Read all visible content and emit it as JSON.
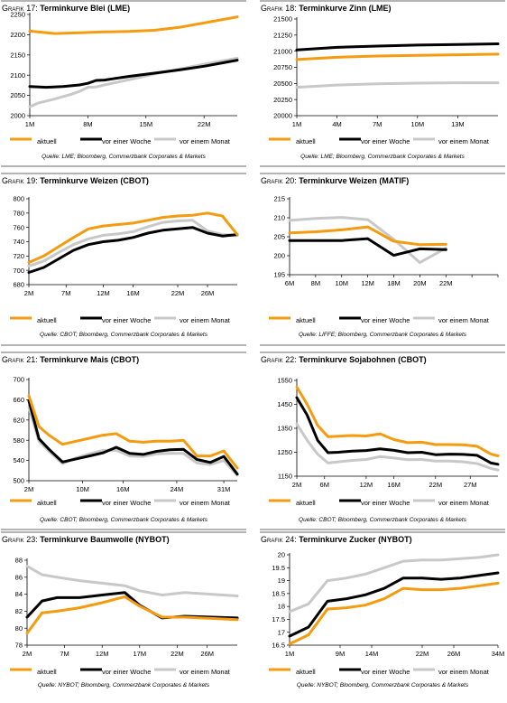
{
  "colors": {
    "aktuell": "#f59b0f",
    "woche": "#000000",
    "monat": "#c8c8c8",
    "rule": "#b4b4b4"
  },
  "grafik_prefix": "Grafik",
  "chart_data": [
    {
      "id": "g17",
      "type": "line",
      "number": "17",
      "title": "Terminkurve Blei (LME)",
      "source": "Quelle: LME; Bloomberg, Commerzbank Corporates & Markets",
      "ylim": [
        2000,
        2250
      ],
      "yticks": [
        2000,
        2050,
        2100,
        2150,
        2200,
        2250
      ],
      "xlim": [
        0,
        25
      ],
      "xticks": [
        {
          "x": 0,
          "label": "1M"
        },
        {
          "x": 7,
          "label": "8M"
        },
        {
          "x": 14,
          "label": "15M"
        },
        {
          "x": 21,
          "label": "22M"
        }
      ],
      "x_tick_marks": [
        0,
        7,
        14,
        21
      ],
      "series": [
        {
          "name": "aktuell",
          "x": [
            0,
            3,
            6,
            9,
            12,
            15,
            18,
            21,
            25
          ],
          "values": [
            2209,
            2203,
            2205,
            2207,
            2208,
            2211,
            2218,
            2229,
            2244
          ]
        },
        {
          "name": "vor einer Woche",
          "x": [
            0,
            2,
            4,
            6,
            7,
            8,
            9,
            10,
            12,
            15,
            18,
            21,
            25
          ],
          "values": [
            2072,
            2070,
            2072,
            2076,
            2080,
            2087,
            2088,
            2091,
            2097,
            2105,
            2113,
            2122,
            2137
          ]
        },
        {
          "name": "vor einem Monat",
          "x": [
            0,
            1,
            3,
            5,
            6,
            7,
            8,
            9,
            12,
            15,
            18,
            21,
            25
          ],
          "values": [
            2022,
            2031,
            2041,
            2053,
            2060,
            2070,
            2071,
            2076,
            2089,
            2103,
            2115,
            2127,
            2142
          ]
        }
      ]
    },
    {
      "id": "g18",
      "type": "line",
      "number": "18",
      "title": "Terminkurve Zinn (LME)",
      "source": "Quelle: LME; Bloomberg, Commerzbank Corporates & Markets",
      "ylim": [
        20000,
        21500
      ],
      "yticks": [
        20000,
        20250,
        20500,
        20750,
        21000,
        21250,
        21500
      ],
      "xlim": [
        0,
        15
      ],
      "xticks": [
        {
          "x": 0,
          "label": "1M"
        },
        {
          "x": 3,
          "label": "4M"
        },
        {
          "x": 6,
          "label": "7M"
        },
        {
          "x": 9,
          "label": "10M"
        },
        {
          "x": 12,
          "label": "13M"
        }
      ],
      "x_tick_marks": [
        0,
        3,
        6,
        9,
        12
      ],
      "series": [
        {
          "name": "aktuell",
          "x": [
            0,
            3,
            6,
            9,
            12,
            15
          ],
          "values": [
            20870,
            20905,
            20925,
            20935,
            20945,
            20955
          ]
        },
        {
          "name": "vor einer Woche",
          "x": [
            0,
            3,
            6,
            9,
            12,
            15
          ],
          "values": [
            21020,
            21060,
            21080,
            21095,
            21105,
            21115
          ]
        },
        {
          "name": "vor einem Monat",
          "x": [
            0,
            3,
            6,
            9,
            12,
            15
          ],
          "values": [
            20440,
            20475,
            20495,
            20505,
            20510,
            20510
          ]
        }
      ]
    },
    {
      "id": "g19",
      "type": "line",
      "number": "19",
      "title": "Terminkurve Weizen (CBOT)",
      "source": "Quelle: CBOT; Bloomberg, Commerzbank Corporates & Markets",
      "ylim": [
        680,
        800
      ],
      "yticks": [
        680,
        700,
        720,
        740,
        760,
        780,
        800
      ],
      "xlim": [
        0,
        28
      ],
      "xticks": [
        {
          "x": 0,
          "label": "2M"
        },
        {
          "x": 5,
          "label": "7M"
        },
        {
          "x": 10,
          "label": "12M"
        },
        {
          "x": 14,
          "label": "16M"
        },
        {
          "x": 20,
          "label": "22M"
        },
        {
          "x": 24,
          "label": "26M"
        }
      ],
      "x_tick_marks": [
        0,
        5,
        10,
        14,
        20,
        24
      ],
      "series": [
        {
          "name": "aktuell",
          "x": [
            0,
            2,
            4,
            6,
            8,
            10,
            12,
            14,
            16,
            18,
            20,
            22,
            24,
            26,
            28
          ],
          "values": [
            711,
            720,
            733,
            746,
            758,
            762,
            764,
            766,
            770,
            774,
            776,
            777,
            780,
            776,
            750
          ]
        },
        {
          "name": "vor einer Woche",
          "x": [
            0,
            2,
            4,
            6,
            8,
            10,
            12,
            14,
            16,
            18,
            20,
            22,
            24,
            26,
            28
          ],
          "values": [
            697,
            704,
            716,
            728,
            736,
            740,
            742,
            746,
            752,
            756,
            758,
            760,
            752,
            748,
            750
          ]
        },
        {
          "name": "vor einem Monat",
          "x": [
            0,
            2,
            4,
            6,
            8,
            10,
            12,
            14,
            16,
            18,
            20,
            22,
            24,
            26,
            28
          ],
          "values": [
            706,
            713,
            725,
            736,
            744,
            749,
            751,
            754,
            761,
            767,
            769,
            770,
            755,
            750,
            749
          ]
        }
      ]
    },
    {
      "id": "g20",
      "type": "line",
      "number": "20",
      "title": "Terminkurve Weizen (MATIF)",
      "source": "Quelle: LIFFE; Bloomberg, Commerzbank Corporates & Markets",
      "ylim": [
        195,
        215
      ],
      "yticks": [
        195,
        200,
        205,
        210,
        215
      ],
      "xlim": [
        0,
        24
      ],
      "xticks": [
        {
          "x": 0,
          "label": "6M"
        },
        {
          "x": 3,
          "label": "8M"
        },
        {
          "x": 6,
          "label": "10M"
        },
        {
          "x": 9,
          "label": "12M"
        },
        {
          "x": 12,
          "label": "18M"
        },
        {
          "x": 15,
          "label": "20M"
        },
        {
          "x": 18,
          "label": "22M"
        }
      ],
      "x_tick_marks": [
        0,
        3,
        6,
        9,
        12,
        15,
        18,
        21,
        24
      ],
      "series": [
        {
          "name": "aktuell",
          "x": [
            0,
            3,
            6,
            9,
            12,
            15,
            18
          ],
          "values": [
            206,
            206.3,
            206.8,
            207.6,
            203.8,
            202.9,
            203
          ]
        },
        {
          "name": "vor einer Woche",
          "x": [
            0,
            3,
            6,
            9,
            12,
            15,
            18
          ],
          "values": [
            204,
            204,
            204,
            204.5,
            200.1,
            201.8,
            201.6
          ]
        },
        {
          "name": "vor einem Monat",
          "x": [
            0,
            3,
            6,
            9,
            12,
            15,
            18
          ],
          "values": [
            209.3,
            209.8,
            210.1,
            209.5,
            204.3,
            198.2,
            202
          ]
        }
      ]
    },
    {
      "id": "g21",
      "type": "line",
      "number": "21",
      "title": "Terminkurve Mais (CBOT)",
      "source": "Quelle: CBOT; Bloomberg, Commerzbank Corporates & Markets",
      "ylim": [
        500,
        700
      ],
      "yticks": [
        500,
        540,
        580,
        620,
        660,
        700
      ],
      "xlim": [
        0,
        31
      ],
      "xticks": [
        {
          "x": 0,
          "label": "2M"
        },
        {
          "x": 8,
          "label": "10M"
        },
        {
          "x": 14,
          "label": "16M"
        },
        {
          "x": 22,
          "label": "24M"
        },
        {
          "x": 29,
          "label": "31M"
        }
      ],
      "x_tick_marks": [
        0,
        8,
        14,
        22,
        29
      ],
      "series": [
        {
          "name": "aktuell",
          "x": [
            0,
            1.5,
            3,
            5,
            7,
            9,
            11,
            13,
            15,
            17,
            19,
            21,
            23,
            25,
            27,
            29,
            31
          ],
          "values": [
            668,
            607,
            590,
            572,
            578,
            584,
            590,
            593,
            578,
            576,
            578,
            578,
            580,
            549,
            549,
            559,
            525
          ]
        },
        {
          "name": "vor einer Woche",
          "x": [
            0,
            1.5,
            3,
            5,
            7,
            9,
            11,
            13,
            15,
            17,
            19,
            21,
            23,
            25,
            27,
            29,
            31
          ],
          "values": [
            658,
            583,
            562,
            537,
            543,
            549,
            555,
            566,
            554,
            552,
            558,
            561,
            562,
            542,
            536,
            548,
            513
          ]
        },
        {
          "name": "vor einem Monat",
          "x": [
            0,
            1.5,
            3,
            5,
            7,
            9,
            11,
            13,
            15,
            17,
            19,
            21,
            23,
            25,
            27,
            29,
            31
          ],
          "values": [
            645,
            578,
            558,
            534,
            545,
            553,
            560,
            560,
            549,
            548,
            553,
            554,
            554,
            535,
            532,
            540,
            511
          ]
        }
      ]
    },
    {
      "id": "g22",
      "type": "line",
      "number": "22",
      "title": "Terminkurve Sojabohnen (CBOT)",
      "source": "Quelle: CBOT; Bloomberg, Commerzbank Corporates & Markets",
      "ylim": [
        1150,
        1550
      ],
      "yticks": [
        1150,
        1250,
        1350,
        1450,
        1550
      ],
      "xlim": [
        0,
        29
      ],
      "xticks": [
        {
          "x": 0,
          "label": "2M"
        },
        {
          "x": 4,
          "label": "6M"
        },
        {
          "x": 10,
          "label": "12M"
        },
        {
          "x": 14,
          "label": "16M"
        },
        {
          "x": 20,
          "label": "22M"
        },
        {
          "x": 25,
          "label": "27M"
        }
      ],
      "x_tick_marks": [
        0,
        4,
        10,
        14,
        20,
        25
      ],
      "series": [
        {
          "name": "aktuell",
          "x": [
            0,
            1.5,
            3,
            4.5,
            6,
            8,
            10,
            12,
            14,
            16,
            18,
            20,
            22,
            24,
            26,
            28,
            29
          ],
          "values": [
            1522,
            1450,
            1362,
            1315,
            1317,
            1320,
            1318,
            1327,
            1303,
            1290,
            1292,
            1282,
            1282,
            1281,
            1275,
            1242,
            1235
          ]
        },
        {
          "name": "vor einer Woche",
          "x": [
            0,
            1.5,
            3,
            4.5,
            6,
            8,
            10,
            12,
            14,
            16,
            18,
            20,
            22,
            24,
            26,
            28,
            29
          ],
          "values": [
            1478,
            1405,
            1300,
            1248,
            1250,
            1255,
            1257,
            1264,
            1258,
            1248,
            1250,
            1240,
            1242,
            1241,
            1237,
            1205,
            1200
          ]
        },
        {
          "name": "vor einem Monat",
          "x": [
            0,
            1.5,
            3,
            4.5,
            6,
            8,
            10,
            12,
            14,
            16,
            18,
            20,
            22,
            24,
            26,
            28,
            29
          ],
          "values": [
            1368,
            1300,
            1242,
            1205,
            1210,
            1216,
            1220,
            1232,
            1226,
            1219,
            1220,
            1213,
            1213,
            1210,
            1203,
            1182,
            1176
          ]
        }
      ]
    },
    {
      "id": "g23",
      "type": "line",
      "number": "23",
      "title": "Terminkurve Baumwolle (NYBOT)",
      "source": "Quelle: NYBOT; Bloomberg, Commerzbank Corporates & Markets",
      "ylim": [
        78,
        88
      ],
      "yticks": [
        78,
        80,
        82,
        84,
        86,
        88
      ],
      "xlim": [
        0,
        28
      ],
      "xticks": [
        {
          "x": 0,
          "label": "2M"
        },
        {
          "x": 5,
          "label": "7M"
        },
        {
          "x": 10,
          "label": "12M"
        },
        {
          "x": 15,
          "label": "17M"
        },
        {
          "x": 20,
          "label": "22M"
        },
        {
          "x": 24,
          "label": "26M"
        }
      ],
      "x_tick_marks": [
        0,
        5,
        10,
        15,
        20,
        24
      ],
      "series": [
        {
          "name": "aktuell",
          "x": [
            0,
            2,
            4,
            7,
            10,
            13,
            15,
            18,
            21,
            28
          ],
          "values": [
            79.4,
            81.8,
            82,
            82.4,
            83,
            83.7,
            82.6,
            81.3,
            81.3,
            81
          ]
        },
        {
          "name": "vor einer Woche",
          "x": [
            0,
            2,
            4,
            7,
            10,
            13,
            15,
            18,
            21,
            28
          ],
          "values": [
            81.3,
            83.2,
            83.6,
            83.6,
            83.9,
            84.2,
            82.7,
            81.2,
            81.4,
            81.2
          ]
        },
        {
          "name": "vor einem Monat",
          "x": [
            0,
            2,
            4,
            7,
            10,
            13,
            15,
            18,
            21,
            28
          ],
          "values": [
            87.3,
            86.3,
            86,
            85.6,
            85.3,
            85,
            84.4,
            83.9,
            84.2,
            83.8
          ]
        }
      ]
    },
    {
      "id": "g24",
      "type": "line",
      "number": "24",
      "title": "Terminkurve Zucker (NYBOT)",
      "source": "Quelle: NYBOT; Bloomberg, Commerzbank Corporates & Markets",
      "ylim": [
        16.5,
        20
      ],
      "yticks": [
        16.5,
        17,
        17.5,
        18,
        18.5,
        19,
        19.5,
        20
      ],
      "xlim": [
        0,
        33
      ],
      "xticks": [
        {
          "x": 0,
          "label": "1M"
        },
        {
          "x": 8,
          "label": "9M"
        },
        {
          "x": 13,
          "label": "14M"
        },
        {
          "x": 21,
          "label": "22M"
        },
        {
          "x": 26,
          "label": "26M"
        },
        {
          "x": 33,
          "label": "34M"
        }
      ],
      "x_tick_marks": [
        0,
        8,
        13,
        21,
        26,
        33
      ],
      "series": [
        {
          "name": "aktuell",
          "x": [
            0,
            3,
            6,
            9,
            12,
            15,
            18,
            21,
            24,
            27,
            30,
            33
          ],
          "values": [
            16.55,
            16.9,
            17.9,
            17.95,
            18.05,
            18.3,
            18.7,
            18.65,
            18.65,
            18.7,
            18.8,
            18.9
          ]
        },
        {
          "name": "vor einer Woche",
          "x": [
            0,
            3,
            6,
            9,
            12,
            15,
            18,
            21,
            24,
            27,
            30,
            33
          ],
          "values": [
            16.85,
            17.2,
            18.2,
            18.3,
            18.45,
            18.7,
            19.1,
            19.1,
            19.05,
            19.1,
            19.2,
            19.3
          ]
        },
        {
          "name": "vor einem Monat",
          "x": [
            0,
            3,
            6,
            9,
            12,
            15,
            18,
            21,
            24,
            27,
            30,
            33
          ],
          "values": [
            17.8,
            18.1,
            19,
            19.1,
            19.25,
            19.5,
            19.75,
            19.8,
            19.8,
            19.85,
            19.9,
            20
          ]
        }
      ]
    }
  ]
}
